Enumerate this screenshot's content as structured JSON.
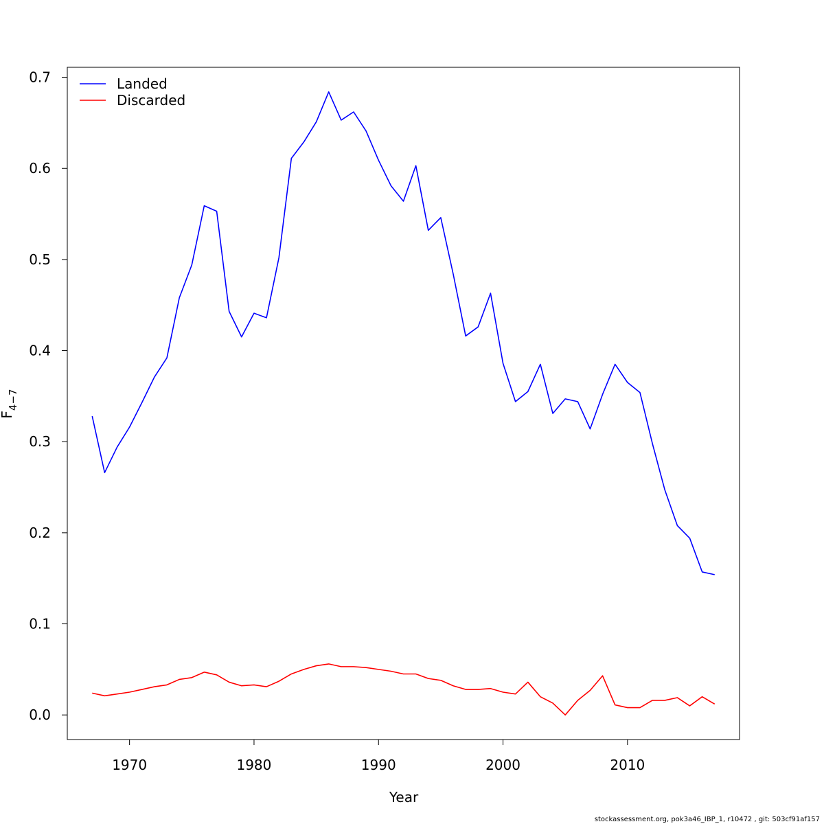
{
  "footer_text": "stockassessment.org, pok3a46_IBP_1, r10472 , git: 503cf91af157",
  "chart_data": {
    "type": "line",
    "title": "",
    "xlabel": "Year",
    "ylabel_main": "F",
    "ylabel_sub": "4−7",
    "xlim": [
      1965,
      2019
    ],
    "ylim": [
      -0.027,
      0.711
    ],
    "xticks": [
      1970,
      1980,
      1990,
      2000,
      2010
    ],
    "yticks": [
      0.0,
      0.1,
      0.2,
      0.3,
      0.4,
      0.5,
      0.6,
      0.7
    ],
    "ytick_labels": [
      "0.0",
      "0.1",
      "0.2",
      "0.3",
      "0.4",
      "0.5",
      "0.6",
      "0.7"
    ],
    "legend_position": "top-left",
    "grid": false,
    "x": [
      1967,
      1968,
      1969,
      1970,
      1971,
      1972,
      1973,
      1974,
      1975,
      1976,
      1977,
      1978,
      1979,
      1980,
      1981,
      1982,
      1983,
      1984,
      1985,
      1986,
      1987,
      1988,
      1989,
      1990,
      1991,
      1992,
      1993,
      1994,
      1995,
      1996,
      1997,
      1998,
      1999,
      2000,
      2001,
      2002,
      2003,
      2004,
      2005,
      2006,
      2007,
      2008,
      2009,
      2010,
      2011,
      2012,
      2013,
      2014,
      2015,
      2016,
      2017
    ],
    "series": [
      {
        "name": "Landed",
        "color": "#0000ff",
        "values": [
          0.328,
          0.266,
          0.294,
          0.316,
          0.343,
          0.371,
          0.392,
          0.458,
          0.494,
          0.559,
          0.553,
          0.443,
          0.415,
          0.441,
          0.436,
          0.502,
          0.611,
          0.629,
          0.651,
          0.684,
          0.653,
          0.662,
          0.641,
          0.609,
          0.581,
          0.564,
          0.603,
          0.532,
          0.546,
          0.484,
          0.416,
          0.426,
          0.463,
          0.386,
          0.344,
          0.355,
          0.385,
          0.331,
          0.347,
          0.344,
          0.314,
          0.352,
          0.385,
          0.365,
          0.354,
          0.298,
          0.247,
          0.208,
          0.194,
          0.157,
          0.154
        ]
      },
      {
        "name": "Discarded",
        "color": "#ff0000",
        "values": [
          0.024,
          0.021,
          0.023,
          0.025,
          0.028,
          0.031,
          0.033,
          0.039,
          0.041,
          0.047,
          0.044,
          0.036,
          0.032,
          0.033,
          0.031,
          0.037,
          0.045,
          0.05,
          0.054,
          0.056,
          0.053,
          0.053,
          0.052,
          0.05,
          0.048,
          0.045,
          0.045,
          0.04,
          0.038,
          0.032,
          0.028,
          0.028,
          0.029,
          0.025,
          0.023,
          0.036,
          0.02,
          0.013,
          0.0,
          0.016,
          0.027,
          0.043,
          0.011,
          0.008,
          0.008,
          0.016,
          0.016,
          0.019,
          0.01,
          0.02,
          0.012
        ]
      }
    ]
  }
}
